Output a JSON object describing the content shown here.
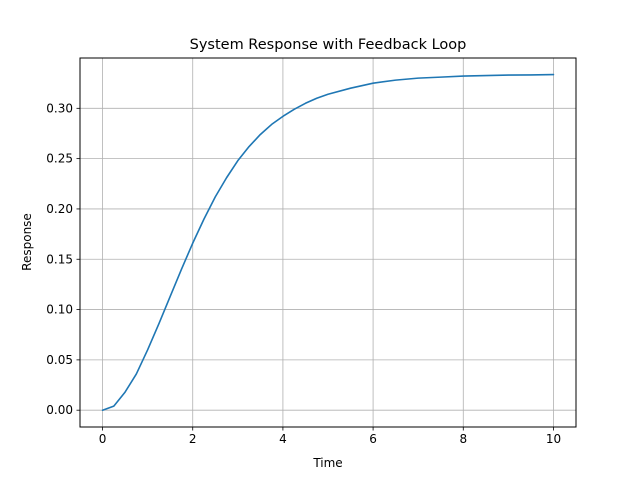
{
  "chart_data": {
    "type": "line",
    "title": "System Response with Feedback Loop",
    "xlabel": "Time",
    "ylabel": "Response",
    "xlim": [
      -0.5,
      10.5
    ],
    "ylim": [
      -0.0167,
      0.35
    ],
    "xticks": [
      0,
      2,
      4,
      6,
      8,
      10
    ],
    "xtick_labels": [
      "0",
      "2",
      "4",
      "6",
      "8",
      "10"
    ],
    "yticks": [
      0.0,
      0.05,
      0.1,
      0.15,
      0.2,
      0.25,
      0.3
    ],
    "ytick_labels": [
      "0.00",
      "0.05",
      "0.10",
      "0.15",
      "0.20",
      "0.25",
      "0.30"
    ],
    "grid": true,
    "series": [
      {
        "color": "#1f77b4",
        "x": [
          0,
          0.25,
          0.5,
          0.75,
          1.0,
          1.25,
          1.5,
          1.75,
          2.0,
          2.25,
          2.5,
          2.75,
          3.0,
          3.25,
          3.5,
          3.75,
          4.0,
          4.25,
          4.5,
          4.75,
          5.0,
          5.5,
          6.0,
          6.5,
          7.0,
          7.5,
          8.0,
          8.5,
          9.0,
          9.5,
          10.0
        ],
        "y": [
          0.0,
          0.004,
          0.018,
          0.036,
          0.06,
          0.086,
          0.113,
          0.14,
          0.166,
          0.19,
          0.212,
          0.231,
          0.248,
          0.262,
          0.274,
          0.284,
          0.292,
          0.299,
          0.305,
          0.31,
          0.314,
          0.32,
          0.325,
          0.328,
          0.33,
          0.331,
          0.332,
          0.3325,
          0.333,
          0.3332,
          0.3335
        ]
      }
    ]
  }
}
